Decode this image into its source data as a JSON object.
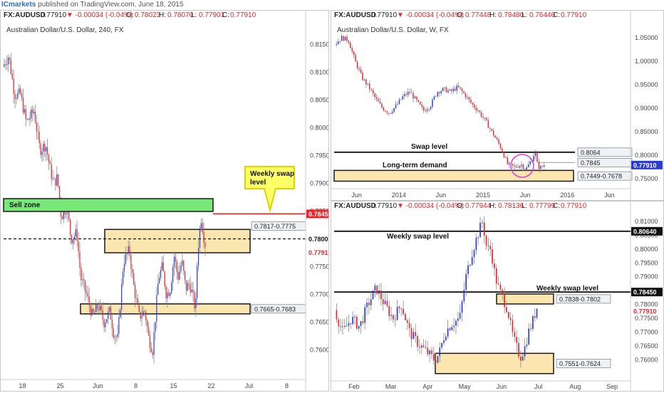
{
  "header": {
    "brand": "ICmarkets",
    "published": "published on TradingView.com, June 18, 2015"
  },
  "colors": {
    "up": "#2b3cd6",
    "down": "#e8252a",
    "zone_fill": "#fbe6b0",
    "zone_border": "#1a1a1a",
    "sell_zone": "#78e878",
    "price_red": "#e8252a",
    "callout": "#ffff66"
  },
  "panels": {
    "h4": {
      "ohlc_symbol": "FX:AUDUSD",
      "ohlc_price": "0.77910",
      "ohlc_change": "▼ -0.00034 (-0.04%)",
      "o_label": "O:",
      "o": "0.78023",
      "h_label": "H:",
      "h": "0.78070",
      "l_label": "L:",
      "l": "0.77901",
      "c_label": "C:",
      "c": "0.77910",
      "title": "Australian Dollar/U.S. Dollar, 240, FX",
      "sell_zone": "Sell zone",
      "callout": "Weekly swap\nlevel",
      "zone1_label": "0.7817-0.7775",
      "zone2_label": "0.7665-0.7683",
      "price_line": "0.78450",
      "dashed_price": "0.78000",
      "current_price": "0.77910"
    },
    "weekly": {
      "ohlc_symbol": "FX:AUDUSD",
      "ohlc_price": "0.77910",
      "ohlc_change": "▼ -0.00034 (-0.04%)",
      "o_label": "O:",
      "o": "0.77448",
      "h_label": "H:",
      "h": "0.78480",
      "l_label": "L:",
      "l": "0.76440",
      "c_label": "C:",
      "c": "0.77910",
      "title": "Australian Dollar/U.S. Dollar, W, FX",
      "swap_label": "Swap level",
      "demand_label": "Long-term demand",
      "lbl_8064": "0.8064",
      "lbl_7845": "0.7845",
      "zone_label": "0.7449-0.7678",
      "current_price": "0.77910"
    },
    "daily": {
      "ohlc_symbol": "FX:AUDUSD",
      "ohlc_price": "0.77910",
      "ohlc_change": "▼ -0.00034 (-0.04%)",
      "o_label": "O:",
      "o": "0.77944",
      "h_label": "H:",
      "h": "0.78136",
      "l_label": "L:",
      "l": "0.77799",
      "c_label": "C:",
      "c": "0.77910",
      "weekly_swap_1": "Weekly swap level",
      "weekly_swap_2": "Weekly swap level",
      "zone1_label": "0.7838-0.7802",
      "zone2_label": "0.7551-0.7624",
      "price_8064": "0.80640",
      "price_7845": "0.78450",
      "current_price": "0.77910"
    }
  },
  "chart_data": [
    {
      "type": "candlestick",
      "title": "Australian Dollar/U.S. Dollar, 240, FX",
      "x_ticks": [
        "18",
        "25",
        "Jun",
        "8",
        "15",
        "22",
        "Jul",
        "8"
      ],
      "y_ticks": [
        "0.81500",
        "0.81000",
        "0.80500",
        "0.80000",
        "0.79500",
        "0.79000",
        "0.78500",
        "0.78000",
        "0.77500",
        "0.77000",
        "0.76500",
        "0.76000"
      ],
      "ylim": [
        0.757,
        0.818
      ],
      "path": [
        [
          0,
          0.811
        ],
        [
          3,
          0.813
        ],
        [
          6,
          0.806
        ],
        [
          9,
          0.806
        ],
        [
          12,
          0.801
        ],
        [
          16,
          0.803
        ],
        [
          19,
          0.796
        ],
        [
          22,
          0.797
        ],
        [
          24,
          0.793
        ],
        [
          26,
          0.79
        ],
        [
          28,
          0.791
        ],
        [
          30,
          0.784
        ],
        [
          33,
          0.786
        ],
        [
          35,
          0.78
        ],
        [
          38,
          0.781
        ],
        [
          40,
          0.773
        ],
        [
          43,
          0.77
        ],
        [
          46,
          0.766
        ],
        [
          49,
          0.768
        ],
        [
          52,
          0.765
        ],
        [
          55,
          0.767
        ],
        [
          57,
          0.763
        ],
        [
          59,
          0.762
        ],
        [
          62,
          0.776
        ],
        [
          65,
          0.778
        ],
        [
          67,
          0.772
        ],
        [
          70,
          0.766
        ],
        [
          73,
          0.767
        ],
        [
          75,
          0.762
        ],
        [
          77,
          0.76
        ],
        [
          80,
          0.773
        ],
        [
          82,
          0.775
        ],
        [
          84,
          0.77
        ],
        [
          86,
          0.771
        ],
        [
          88,
          0.777
        ],
        [
          90,
          0.773
        ],
        [
          92,
          0.776
        ],
        [
          94,
          0.771
        ],
        [
          96,
          0.772
        ],
        [
          98,
          0.769
        ],
        [
          99,
          0.767
        ],
        [
          100,
          0.777
        ],
        [
          101,
          0.781
        ],
        [
          102,
          0.784
        ],
        [
          103,
          0.781
        ],
        [
          104,
          0.7791
        ]
      ],
      "zones": [
        [
          0.7775,
          0.7817
        ],
        [
          0.7665,
          0.7683
        ]
      ],
      "lines": [
        {
          "price": 0.7845,
          "color": "#e8252a"
        },
        {
          "price": 0.78,
          "style": "dashed"
        }
      ],
      "sell_zone": [
        0.7845,
        0.7865
      ]
    },
    {
      "type": "candlestick",
      "title": "Australian Dollar/U.S. Dollar, W, FX",
      "x_ticks": [
        "Jun",
        "2014",
        "Jun",
        "2015",
        "Jun",
        "2016",
        "Jun"
      ],
      "y_ticks": [
        "1.05000",
        "1.00000",
        "0.95000",
        "0.90000",
        "0.85000",
        "0.80000",
        "0.75000"
      ],
      "ylim": [
        0.735,
        1.065
      ],
      "path": [
        [
          0,
          1.035
        ],
        [
          3,
          1.05
        ],
        [
          6,
          1.045
        ],
        [
          9,
          1.0
        ],
        [
          12,
          0.965
        ],
        [
          15,
          0.945
        ],
        [
          18,
          0.92
        ],
        [
          21,
          0.9
        ],
        [
          24,
          0.89
        ],
        [
          27,
          0.905
        ],
        [
          30,
          0.925
        ],
        [
          33,
          0.935
        ],
        [
          36,
          0.915
        ],
        [
          39,
          0.895
        ],
        [
          42,
          0.905
        ],
        [
          45,
          0.935
        ],
        [
          48,
          0.94
        ],
        [
          51,
          0.935
        ],
        [
          54,
          0.945
        ],
        [
          57,
          0.93
        ],
        [
          60,
          0.91
        ],
        [
          63,
          0.895
        ],
        [
          66,
          0.875
        ],
        [
          69,
          0.85
        ],
        [
          72,
          0.825
        ],
        [
          74,
          0.805
        ],
        [
          76,
          0.78
        ],
        [
          79,
          0.775
        ],
        [
          82,
          0.78
        ],
        [
          84,
          0.77
        ],
        [
          87,
          0.795
        ],
        [
          88,
          0.81
        ],
        [
          89,
          0.78
        ],
        [
          90,
          0.772
        ],
        [
          92,
          0.779
        ]
      ],
      "zones": [
        [
          0.7449,
          0.7678
        ]
      ],
      "lines": [
        {
          "price": 0.8064
        },
        {
          "price": 0.7845,
          "color": "#999"
        }
      ]
    },
    {
      "type": "candlestick",
      "x_ticks": [
        "Feb",
        "Mar",
        "Apr",
        "May",
        "Jun",
        "Jul",
        "Aug",
        "Sep"
      ],
      "y_ticks": [
        "0.81000",
        "0.80500",
        "0.80000",
        "0.79500",
        "0.79000",
        "0.78500",
        "0.78000",
        "0.77500",
        "0.77000",
        "0.76500",
        "0.76000"
      ],
      "ylim": [
        0.7535,
        0.812
      ],
      "path": [
        [
          0,
          0.778
        ],
        [
          4,
          0.77
        ],
        [
          8,
          0.775
        ],
        [
          12,
          0.772
        ],
        [
          16,
          0.78
        ],
        [
          20,
          0.786
        ],
        [
          24,
          0.78
        ],
        [
          28,
          0.775
        ],
        [
          32,
          0.78
        ],
        [
          36,
          0.77
        ],
        [
          40,
          0.766
        ],
        [
          44,
          0.763
        ],
        [
          48,
          0.76
        ],
        [
          50,
          0.762
        ],
        [
          53,
          0.77
        ],
        [
          56,
          0.773
        ],
        [
          60,
          0.775
        ],
        [
          63,
          0.79
        ],
        [
          66,
          0.799
        ],
        [
          69,
          0.806
        ],
        [
          71,
          0.81
        ],
        [
          73,
          0.8
        ],
        [
          75,
          0.8
        ],
        [
          77,
          0.79
        ],
        [
          79,
          0.785
        ],
        [
          81,
          0.782
        ],
        [
          83,
          0.778
        ],
        [
          85,
          0.77
        ],
        [
          87,
          0.765
        ],
        [
          89,
          0.761
        ],
        [
          91,
          0.764
        ],
        [
          93,
          0.77
        ],
        [
          95,
          0.774
        ],
        [
          97,
          0.779
        ]
      ],
      "zones": [
        [
          0.7802,
          0.7838
        ],
        [
          0.7551,
          0.7624
        ]
      ],
      "lines": [
        {
          "price": 0.8064
        },
        {
          "price": 0.7845
        }
      ]
    }
  ]
}
